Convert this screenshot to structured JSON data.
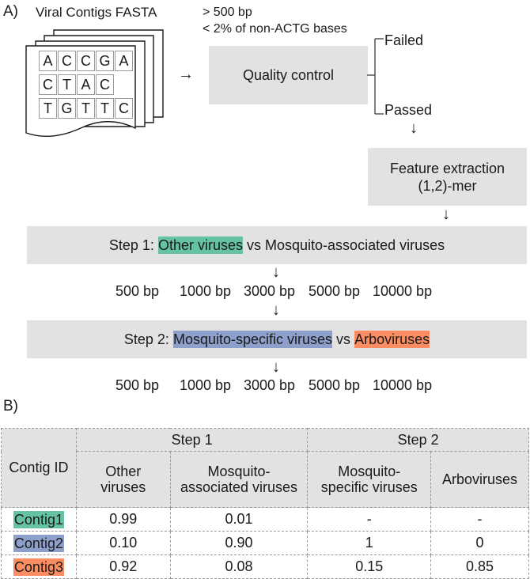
{
  "panel_a": {
    "label": "A)"
  },
  "panel_b": {
    "label": "B)"
  },
  "fasta": {
    "title": "Viral Contigs FASTA",
    "rows": [
      [
        "A",
        "C",
        "C",
        "G",
        "A"
      ],
      [
        "C",
        "T",
        "A",
        "C"
      ],
      [
        "T",
        "G",
        "T",
        "T",
        "C"
      ]
    ]
  },
  "qc": {
    "criteria_1": "> 500 bp",
    "criteria_2": "< 2% of non-ACTG bases",
    "box_label": "Quality control",
    "failed": "Failed",
    "passed": "Passed"
  },
  "feature": {
    "line1": "Feature extraction",
    "line2": "(1,2)-mer"
  },
  "step1": {
    "prefix": "Step 1:",
    "class_a": "Other viruses",
    "vs": "vs",
    "class_b": "Mosquito-associated viruses"
  },
  "step2": {
    "prefix": "Step 2:",
    "class_a": "Mosquito-specific viruses",
    "vs": "vs",
    "class_b": "Arboviruses"
  },
  "lengths": [
    "500 bp",
    "1000 bp",
    "3000 bp",
    "5000 bp",
    "10000 bp"
  ],
  "colors": {
    "other_viruses": "#66c2a5",
    "mosquito_specific": "#8da0cb",
    "arboviruses": "#fc8d62",
    "box_gray": "#e2e2e2"
  },
  "table": {
    "contig_id_header": "Contig ID",
    "step1_header": "Step 1",
    "step2_header": "Step 2",
    "col_other_1": "Other",
    "col_other_2": "viruses",
    "col_mosq_assoc_1": "Mosquito-",
    "col_mosq_assoc_2": "associated viruses",
    "col_mosq_spec_1": "Mosquito-",
    "col_mosq_spec_2": "specific viruses",
    "col_arbo": "Arboviruses",
    "rows": [
      {
        "id": "Contig1",
        "other": "0.99",
        "mosq_assoc": "0.01",
        "mosq_spec": "-",
        "arbo": "-"
      },
      {
        "id": "Contig2",
        "other": "0.10",
        "mosq_assoc": "0.90",
        "mosq_spec": "1",
        "arbo": "0"
      },
      {
        "id": "Contig3",
        "other": "0.92",
        "mosq_assoc": "0.08",
        "mosq_spec": "0.15",
        "arbo": "0.85"
      }
    ]
  }
}
